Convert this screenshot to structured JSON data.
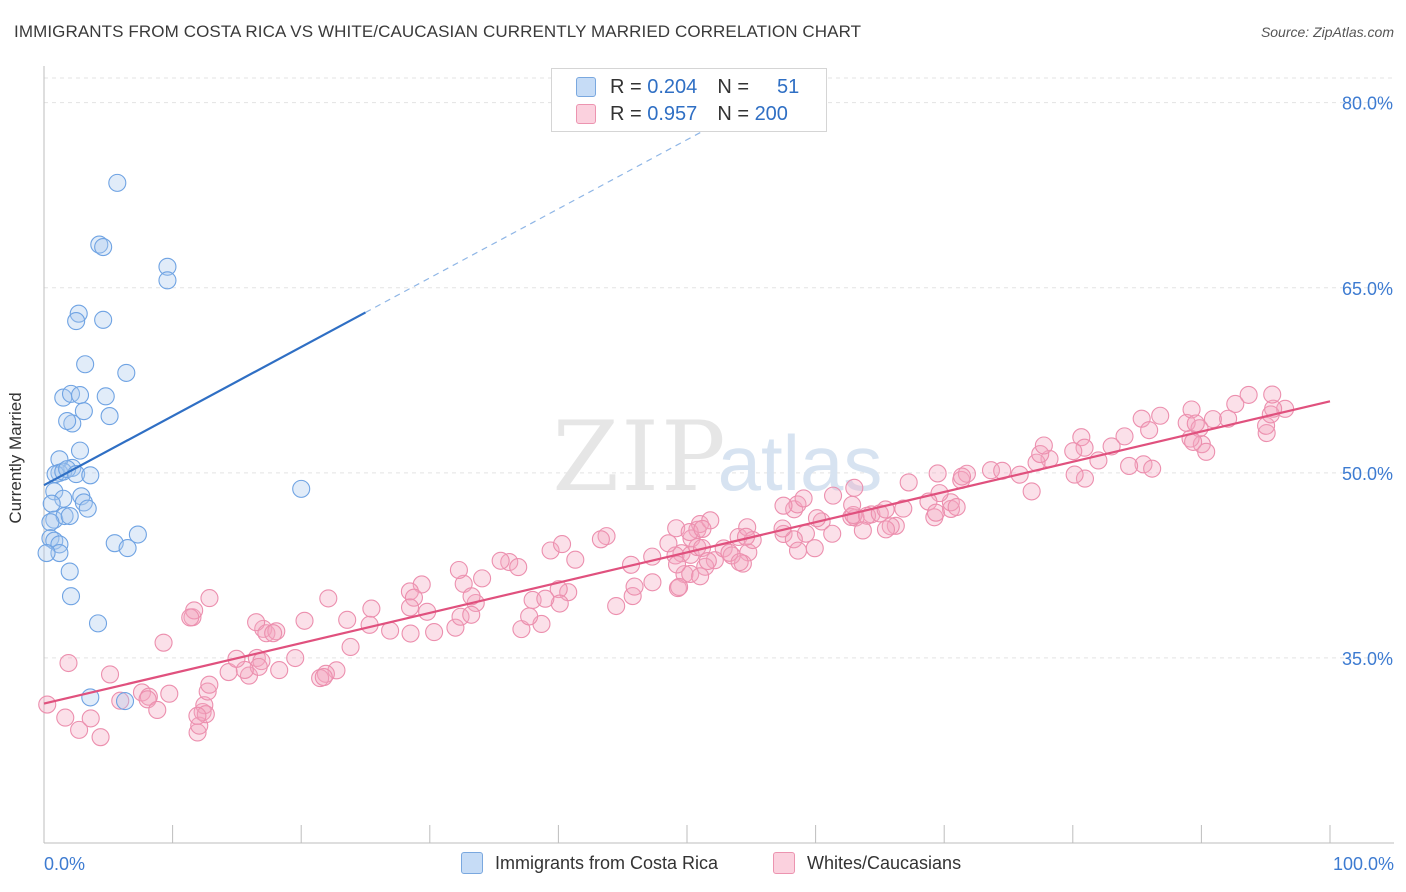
{
  "header": {
    "title": "IMMIGRANTS FROM COSTA RICA VS WHITE/CAUCASIAN CURRENTLY MARRIED CORRELATION CHART",
    "source": "Source: ZipAtlas.com"
  },
  "legend": {
    "rows": [
      {
        "r_label": "R =",
        "r_value": "0.204",
        "n_label": "N =",
        "n_value": "51",
        "color": "#a9c8ef"
      },
      {
        "r_label": "R =",
        "r_value": "0.957",
        "n_label": "N =",
        "n_value": "200",
        "color": "#f7b6c9"
      }
    ]
  },
  "bottom_legend": {
    "series1": "Immigrants from Costa Rica",
    "series2": "Whites/Caucasians"
  },
  "watermark": {
    "zip": "ZIP",
    "atlas": "atlas"
  },
  "chart_data": {
    "type": "scatter",
    "title": "IMMIGRANTS FROM COSTA RICA VS WHITE/CAUCASIAN CURRENTLY MARRIED CORRELATION CHART",
    "ylabel": "Currently Married",
    "xlim": [
      0,
      100
    ],
    "ylim": [
      20,
      82
    ],
    "x_tick_labels": [
      "0.0%",
      "100.0%"
    ],
    "y_ticks": [
      35,
      50,
      65,
      80
    ],
    "y_tick_labels": [
      "35.0%",
      "50.0%",
      "65.0%",
      "80.0%"
    ],
    "grid": true,
    "legend_position": "top-center",
    "series": [
      {
        "name": "Immigrants from Costa Rica",
        "color": "#6fa3e3",
        "stroke": "#2f6fc4",
        "trend": {
          "x1": 0,
          "y1": 49.0,
          "x2": 25,
          "y2": 63.0,
          "dashed_to_x": 52
        },
        "points": [
          [
            5.7,
            73.5
          ],
          [
            4.3,
            68.5
          ],
          [
            4.6,
            68.3
          ],
          [
            9.6,
            66.7
          ],
          [
            9.6,
            65.6
          ],
          [
            2.7,
            62.9
          ],
          [
            2.5,
            62.3
          ],
          [
            4.6,
            62.4
          ],
          [
            3.2,
            58.8
          ],
          [
            6.4,
            58.1
          ],
          [
            1.5,
            56.1
          ],
          [
            2.1,
            56.4
          ],
          [
            2.8,
            56.3
          ],
          [
            4.8,
            56.2
          ],
          [
            2.2,
            54.0
          ],
          [
            3.1,
            55.0
          ],
          [
            1.8,
            54.2
          ],
          [
            5.1,
            54.6
          ],
          [
            2.2,
            50.4
          ],
          [
            2.8,
            51.8
          ],
          [
            1.2,
            51.1
          ],
          [
            1.2,
            50.0
          ],
          [
            0.9,
            49.9
          ],
          [
            1.5,
            50.1
          ],
          [
            1.8,
            50.3
          ],
          [
            2.5,
            49.9
          ],
          [
            3.6,
            49.8
          ],
          [
            0.8,
            48.5
          ],
          [
            1.5,
            47.9
          ],
          [
            2.9,
            48.1
          ],
          [
            3.1,
            47.6
          ],
          [
            3.4,
            47.1
          ],
          [
            0.6,
            47.5
          ],
          [
            0.8,
            46.2
          ],
          [
            1.6,
            46.5
          ],
          [
            2.0,
            46.5
          ],
          [
            0.5,
            46.0
          ],
          [
            0.5,
            44.7
          ],
          [
            0.8,
            44.5
          ],
          [
            1.2,
            44.2
          ],
          [
            1.2,
            43.5
          ],
          [
            5.5,
            44.3
          ],
          [
            7.3,
            45.0
          ],
          [
            6.5,
            43.9
          ],
          [
            2.0,
            42.0
          ],
          [
            2.1,
            40.0
          ],
          [
            4.2,
            37.8
          ],
          [
            20.0,
            48.7
          ],
          [
            3.6,
            31.8
          ],
          [
            6.3,
            31.5
          ],
          [
            0.2,
            43.5
          ]
        ]
      },
      {
        "name": "Whites/Caucasians",
        "color": "#f4a6bf",
        "stroke": "#e0517e",
        "trend": {
          "x1": 0,
          "y1": 31.3,
          "x2": 100,
          "y2": 55.8
        },
        "point_count": 200
      }
    ]
  }
}
